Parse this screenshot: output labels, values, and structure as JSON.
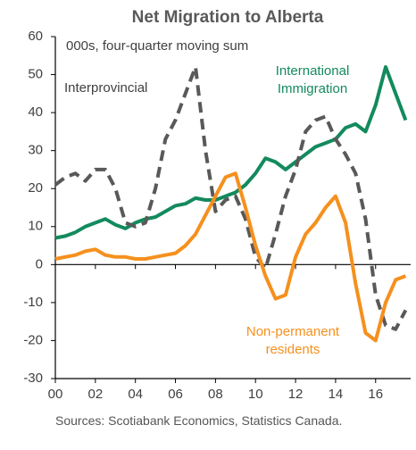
{
  "chart_data": {
    "type": "line",
    "title": "Net Migration to Alberta",
    "subtitle": "000s, four-quarter moving sum",
    "source": "Sources: Scotiabank Economics, Statistics Canada.",
    "x": [
      0,
      0.5,
      1,
      1.5,
      2,
      2.5,
      3,
      3.5,
      4,
      4.5,
      5,
      5.5,
      6,
      6.5,
      7,
      7.5,
      8,
      8.5,
      9,
      9.5,
      10,
      10.5,
      11,
      11.5,
      12,
      12.5,
      13,
      13.5,
      14,
      14.5,
      15,
      15.5,
      16,
      16.5,
      17,
      17.5
    ],
    "series": [
      {
        "name": "International Immigration",
        "label_lines": [
          "International",
          "Immigration"
        ],
        "color": "#138a5d",
        "dashed": false,
        "values": [
          7,
          7.5,
          8.5,
          10,
          11,
          12,
          10.5,
          9.5,
          11,
          12,
          12.5,
          14,
          15.5,
          16,
          17.5,
          17,
          17,
          18,
          19,
          21,
          24,
          28,
          27,
          25,
          27,
          29,
          31,
          32,
          33,
          36,
          37,
          35,
          42,
          52,
          45,
          38
        ]
      },
      {
        "name": "Interprovincial",
        "label_lines": [
          "Interprovincial"
        ],
        "color": "#595959",
        "dashed": true,
        "values": [
          21,
          23,
          24,
          22,
          25,
          25,
          20,
          11,
          10,
          11,
          20,
          33,
          38,
          45,
          52,
          30,
          14,
          17,
          18,
          12,
          2,
          -1,
          8,
          18,
          25,
          35,
          38,
          39,
          33,
          29,
          24,
          12,
          -8,
          -16,
          -17,
          -12
        ]
      },
      {
        "name": "Non-permanent residents",
        "label_lines": [
          "Non-permanent",
          "residents"
        ],
        "color": "#f5901e",
        "dashed": false,
        "values": [
          1.5,
          2,
          2.5,
          3.5,
          4,
          2.5,
          2,
          2,
          1.5,
          1.5,
          2,
          2.5,
          3,
          5,
          8,
          13,
          18,
          23,
          24,
          15,
          5,
          -3,
          -9,
          -8,
          2,
          8,
          11,
          15,
          18,
          11,
          -5,
          -18,
          -20,
          -10,
          -4,
          -3
        ]
      }
    ],
    "xlim": [
      0,
      17.75
    ],
    "xticks": [
      {
        "value": 0,
        "label": "00"
      },
      {
        "value": 2,
        "label": "02"
      },
      {
        "value": 4,
        "label": "04"
      },
      {
        "value": 6,
        "label": "06"
      },
      {
        "value": 8,
        "label": "08"
      },
      10,
      12,
      14,
      16
    ],
    "ylim": [
      -30,
      60
    ],
    "yticks": [
      -30,
      -20,
      -10,
      0,
      10,
      20,
      30,
      40,
      50,
      60
    ]
  }
}
